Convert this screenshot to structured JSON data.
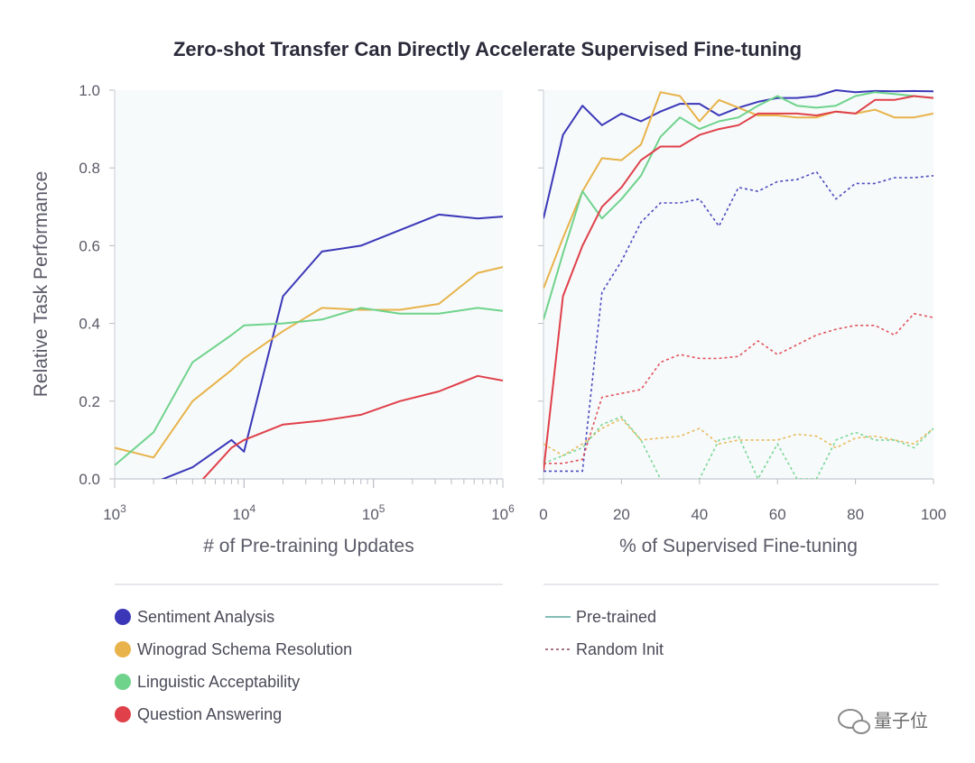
{
  "title": "Zero-shot Transfer Can Directly Accelerate Supervised Fine-tuning",
  "ylabel": "Relative Task Performance",
  "watermark": "量子位",
  "colors": {
    "sentiment": "#3b37b8",
    "winograd": "#e8b34a",
    "linguistic": "#6fd38c",
    "question": "#e0404a"
  },
  "legend": {
    "tasks": [
      {
        "key": "sentiment",
        "label": "Sentiment Analysis"
      },
      {
        "key": "winograd",
        "label": "Winograd Schema Resolution"
      },
      {
        "key": "linguistic",
        "label": "Linguistic Acceptability"
      },
      {
        "key": "question",
        "label": "Question Answering"
      }
    ],
    "styles": [
      {
        "key": "pretrained",
        "label": "Pre-trained",
        "dash": false
      },
      {
        "key": "random",
        "label": "Random Init",
        "dash": true
      }
    ]
  },
  "chart_data": [
    {
      "type": "line",
      "xlabel": "# of Pre-training Updates",
      "ylabel": "Relative Task Performance",
      "xscale": "log",
      "xlim": [
        1000,
        1000000
      ],
      "ylim": [
        0,
        1.0
      ],
      "xticks": [
        {
          "value": 1000,
          "base": "10",
          "exp": "3"
        },
        {
          "value": 10000,
          "base": "10",
          "exp": "4"
        },
        {
          "value": 100000,
          "base": "10",
          "exp": "5"
        },
        {
          "value": 1000000,
          "base": "10",
          "exp": "6"
        }
      ],
      "yticks": [
        "0.0",
        "0.2",
        "0.4",
        "0.6",
        "0.8",
        "1.0"
      ],
      "series": [
        {
          "key": "sentiment",
          "x": [
            1000,
            2000,
            4000,
            8000,
            10000,
            20000,
            40000,
            80000,
            160000,
            320000,
            640000,
            1000000
          ],
          "values": [
            -0.02,
            -0.01,
            0.03,
            0.1,
            0.07,
            0.47,
            0.585,
            0.6,
            0.64,
            0.68,
            0.67,
            0.675
          ]
        },
        {
          "key": "winograd",
          "x": [
            1000,
            2000,
            4000,
            8000,
            10000,
            20000,
            40000,
            80000,
            160000,
            320000,
            640000,
            1000000
          ],
          "values": [
            0.08,
            0.055,
            0.2,
            0.28,
            0.31,
            0.38,
            0.44,
            0.435,
            0.435,
            0.45,
            0.53,
            0.545
          ]
        },
        {
          "key": "linguistic",
          "x": [
            1000,
            2000,
            4000,
            8000,
            10000,
            20000,
            40000,
            80000,
            160000,
            320000,
            640000,
            1000000
          ],
          "values": [
            0.035,
            0.12,
            0.3,
            0.37,
            0.395,
            0.4,
            0.41,
            0.44,
            0.425,
            0.425,
            0.44,
            0.432
          ]
        },
        {
          "key": "question",
          "x": [
            1000,
            2000,
            4000,
            8000,
            10000,
            20000,
            40000,
            80000,
            160000,
            320000,
            640000,
            1000000
          ],
          "values": [
            -0.1,
            -0.05,
            -0.03,
            0.08,
            0.1,
            0.14,
            0.15,
            0.165,
            0.2,
            0.225,
            0.265,
            0.253
          ]
        }
      ]
    },
    {
      "type": "line",
      "xlabel": "% of Supervised Fine-tuning",
      "xlim": [
        0,
        100
      ],
      "ylim": [
        0,
        1.0
      ],
      "xticks": [
        "0",
        "20",
        "40",
        "60",
        "80",
        "100"
      ],
      "x": [
        0,
        5,
        10,
        15,
        20,
        25,
        30,
        35,
        40,
        45,
        50,
        55,
        60,
        65,
        70,
        75,
        80,
        85,
        90,
        95,
        100
      ],
      "series": [
        {
          "key": "sentiment",
          "style": "pretrained",
          "values": [
            0.67,
            0.885,
            0.96,
            0.91,
            0.94,
            0.92,
            0.945,
            0.965,
            0.965,
            0.935,
            0.955,
            0.97,
            0.98,
            0.98,
            0.985,
            1.0,
            0.995,
            0.998,
            0.997,
            0.998,
            0.997
          ]
        },
        {
          "key": "winograd",
          "style": "pretrained",
          "values": [
            0.49,
            0.62,
            0.74,
            0.825,
            0.82,
            0.86,
            0.995,
            0.985,
            0.92,
            0.975,
            0.955,
            0.935,
            0.935,
            0.93,
            0.93,
            0.945,
            0.94,
            0.95,
            0.93,
            0.93,
            0.94
          ]
        },
        {
          "key": "linguistic",
          "style": "pretrained",
          "values": [
            0.41,
            0.58,
            0.74,
            0.67,
            0.72,
            0.78,
            0.88,
            0.93,
            0.9,
            0.92,
            0.93,
            0.96,
            0.985,
            0.96,
            0.955,
            0.96,
            0.985,
            0.995,
            0.99,
            0.985,
            0.98
          ]
        },
        {
          "key": "question",
          "style": "pretrained",
          "values": [
            0.02,
            0.47,
            0.6,
            0.7,
            0.75,
            0.82,
            0.855,
            0.855,
            0.885,
            0.9,
            0.91,
            0.94,
            0.94,
            0.94,
            0.935,
            0.945,
            0.94,
            0.975,
            0.975,
            0.985,
            0.98
          ]
        },
        {
          "key": "sentiment",
          "style": "random",
          "values": [
            0.02,
            0.02,
            0.02,
            0.48,
            0.56,
            0.66,
            0.71,
            0.71,
            0.72,
            0.65,
            0.75,
            0.74,
            0.765,
            0.77,
            0.79,
            0.72,
            0.76,
            0.76,
            0.775,
            0.775,
            0.78
          ]
        },
        {
          "key": "winograd",
          "style": "random",
          "values": [
            0.09,
            0.06,
            0.09,
            0.13,
            0.155,
            0.1,
            0.105,
            0.11,
            0.13,
            0.09,
            0.1,
            0.1,
            0.1,
            0.115,
            0.11,
            0.08,
            0.105,
            0.11,
            0.1,
            0.09,
            0.13
          ]
        },
        {
          "key": "linguistic",
          "style": "random",
          "values": [
            0.04,
            0.06,
            0.08,
            0.14,
            0.16,
            0.1,
            0.0,
            -0.03,
            0.0,
            0.1,
            0.11,
            0.0,
            0.09,
            0.0,
            0.0,
            0.1,
            0.12,
            0.1,
            0.1,
            0.08,
            0.13
          ]
        },
        {
          "key": "question",
          "style": "random",
          "values": [
            0.04,
            0.04,
            0.05,
            0.21,
            0.22,
            0.23,
            0.3,
            0.32,
            0.31,
            0.31,
            0.315,
            0.355,
            0.32,
            0.345,
            0.37,
            0.385,
            0.395,
            0.395,
            0.37,
            0.425,
            0.415
          ]
        }
      ]
    }
  ]
}
